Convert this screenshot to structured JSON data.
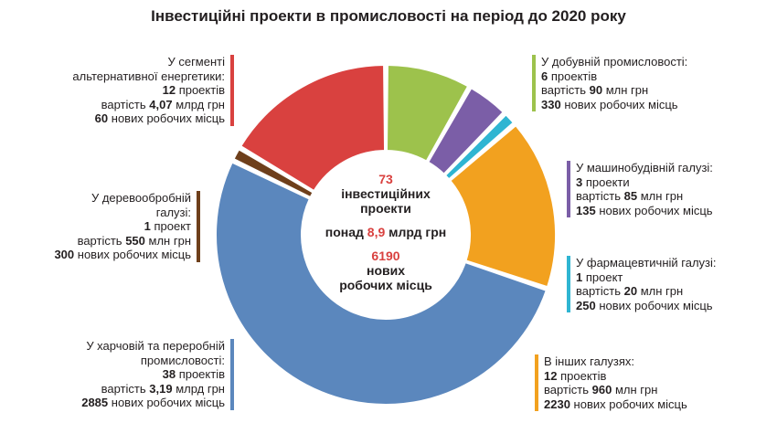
{
  "title": "Інвестиційні проекти в промисловості на період до 2020 року",
  "center": {
    "projects_count": "73",
    "projects_label_1": "інвестиційних",
    "projects_label_2": "проекти",
    "total_prefix": "понад",
    "total_value": "8,9",
    "total_unit": "млрд грн",
    "jobs_count": "6190",
    "jobs_label_1": "нових",
    "jobs_label_2": "робочих місць"
  },
  "colors": {
    "alternative_energy": "#d9413f",
    "mining": "#9dc24c",
    "machine_building": "#7b5ea7",
    "pharmaceutical": "#2fb5d2",
    "other": "#f2a11f",
    "food": "#5b87bd",
    "woodworking": "#6e3f1b"
  },
  "blocks": {
    "alternative_energy": {
      "l1": "У сегменті",
      "l2": "альтернативної енергетики:",
      "projects_num": "12",
      "projects_word": "проектів",
      "cost_prefix": "вартість",
      "cost_num": "4,07",
      "cost_unit": "млрд грн",
      "jobs_num": "60",
      "jobs_word": "нових робочих місць"
    },
    "woodworking": {
      "l1": "У деревообробній",
      "l2": "галузі:",
      "projects_num": "1",
      "projects_word": "проект",
      "cost_prefix": "вартість",
      "cost_num": "550",
      "cost_unit": "млн грн",
      "jobs_num": "300",
      "jobs_word": "нових робочих місць"
    },
    "food": {
      "l1": "У харчовій та переробній",
      "l2": "промисловості:",
      "projects_num": "38",
      "projects_word": "проектів",
      "cost_prefix": "вартість",
      "cost_num": "3,19",
      "cost_unit": "млрд грн",
      "jobs_num": "2885",
      "jobs_word": "нових робочих місць"
    },
    "mining": {
      "l1": "У добувній промисловості:",
      "projects_num": "6",
      "projects_word": "проектів",
      "cost_prefix": "вартість",
      "cost_num": "90",
      "cost_unit": "млн грн",
      "jobs_num": "330",
      "jobs_word": "нових робочих місць"
    },
    "machine_building": {
      "l1": "У машинобудівній галузі:",
      "projects_num": "3",
      "projects_word": "проекти",
      "cost_prefix": "вартість",
      "cost_num": "85",
      "cost_unit": "млн грн",
      "jobs_num": "135",
      "jobs_word": "нових робочих місць"
    },
    "pharmaceutical": {
      "l1": "У фармацевтичній галузі:",
      "projects_num": "1",
      "projects_word": "проект",
      "cost_prefix": "вартість",
      "cost_num": "20",
      "cost_unit": "млн грн",
      "jobs_num": "250",
      "jobs_word": "нових робочих місць"
    },
    "other": {
      "l1": "В інших галузях:",
      "projects_num": "12",
      "projects_word": "проектів",
      "cost_prefix": "вартість",
      "cost_num": "960",
      "cost_unit": "млн грн",
      "jobs_num": "2230",
      "jobs_word": "нових робочих місць"
    }
  },
  "chart_data": {
    "type": "pie",
    "title": "Інвестиційні проекти в промисловості на період до 2020 року",
    "value_field": "projects",
    "order": "clockwise from top",
    "slices": [
      {
        "label": "У добувній промисловості",
        "projects": 6,
        "cost": "90 млн грн",
        "jobs": 330,
        "color": "#9dc24c"
      },
      {
        "label": "У машинобудівній галузі",
        "projects": 3,
        "cost": "85 млн грн",
        "jobs": 135,
        "color": "#7b5ea7"
      },
      {
        "label": "У фармацевтичній галузі",
        "projects": 1,
        "cost": "20 млн грн",
        "jobs": 250,
        "color": "#2fb5d2"
      },
      {
        "label": "В інших галузях",
        "projects": 12,
        "cost": "960 млн грн",
        "jobs": 2230,
        "color": "#f2a11f"
      },
      {
        "label": "У харчовій та переробній промисловості",
        "projects": 38,
        "cost": "3,19 млрд грн",
        "jobs": 2885,
        "color": "#5b87bd"
      },
      {
        "label": "У деревообробній галузі",
        "projects": 1,
        "cost": "550 млн грн",
        "jobs": 300,
        "color": "#6e3f1b"
      },
      {
        "label": "У сегменті альтернативної енергетики",
        "projects": 12,
        "cost": "4,07 млрд грн",
        "jobs": 60,
        "color": "#d9413f"
      }
    ],
    "total_projects": 73,
    "total_cost": "понад 8,9 млрд грн",
    "total_jobs": 6190
  }
}
